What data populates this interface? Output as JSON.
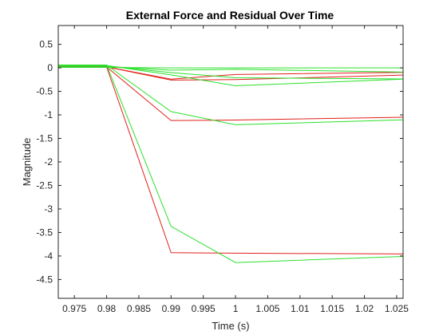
{
  "chart_data": {
    "type": "line",
    "title": "External Force and Residual Over Time",
    "xlabel": "Time (s)",
    "ylabel": "Magnitude",
    "xlim": [
      0.9725,
      1.026
    ],
    "ylim": [
      -4.9,
      0.9
    ],
    "xticks": [
      0.975,
      0.98,
      0.985,
      0.99,
      0.995,
      1,
      1.005,
      1.01,
      1.015,
      1.02,
      1.025
    ],
    "xtick_labels": [
      "0.975",
      "0.98",
      "0.985",
      "0.99",
      "0.995",
      "1",
      "1.005",
      "1.01",
      "1.015",
      "1.02",
      "1.025"
    ],
    "yticks": [
      0.5,
      0,
      -0.5,
      -1,
      -1.5,
      -2,
      -2.5,
      -3,
      -3.5,
      -4,
      -4.5
    ],
    "ytick_labels": [
      "0.5",
      "0",
      "-0.5",
      "-1",
      "-1.5",
      "-2",
      "-2.5",
      "-3",
      "-3.5",
      "-4",
      "-4.5"
    ],
    "grid": false,
    "colors": {
      "red": "#e0201b",
      "green": "#2be02b",
      "axis": "#262626"
    },
    "x": [
      0.97,
      0.98,
      0.99,
      1.0,
      1.03
    ],
    "series": [
      {
        "color": "red",
        "values": [
          0.02,
          0.02,
          -3.93,
          -3.94,
          -3.96
        ]
      },
      {
        "color": "red",
        "values": [
          0.02,
          0.02,
          -1.12,
          -1.11,
          -1.04
        ]
      },
      {
        "color": "red",
        "values": [
          0.02,
          0.02,
          -0.26,
          -0.25,
          -0.14
        ]
      },
      {
        "color": "red",
        "values": [
          0.02,
          0.02,
          -0.24,
          -0.14,
          -0.09
        ]
      },
      {
        "color": "green",
        "values": [
          0.06,
          0.06,
          -3.37,
          -4.14,
          -3.99
        ]
      },
      {
        "color": "green",
        "values": [
          0.06,
          0.06,
          -0.93,
          -1.21,
          -1.09
        ]
      },
      {
        "color": "green",
        "values": [
          0.05,
          0.05,
          -0.15,
          -0.38,
          -0.22
        ]
      },
      {
        "color": "green",
        "values": [
          0.04,
          0.04,
          -0.1,
          -0.21,
          -0.24
        ]
      },
      {
        "color": "green",
        "values": [
          0.03,
          0.03,
          -0.05,
          -0.03,
          -0.1
        ]
      },
      {
        "color": "green",
        "values": [
          0.01,
          0.01,
          0.0,
          0.0,
          0.0
        ]
      }
    ]
  }
}
